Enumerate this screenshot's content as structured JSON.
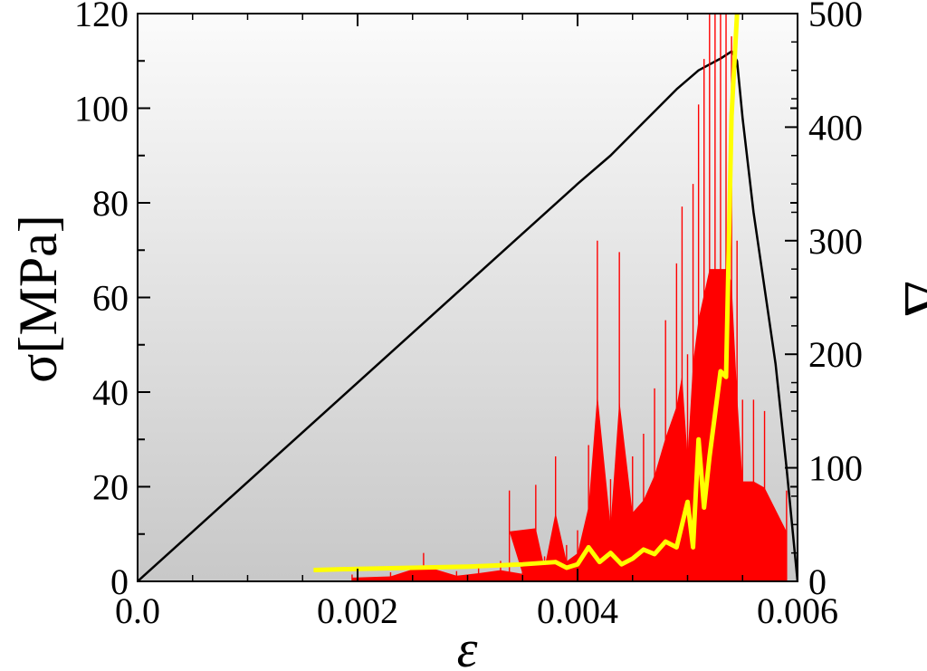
{
  "chart_data": {
    "type": "line",
    "title": "",
    "xlabel": "ε",
    "ylabel": "σ[MPa]",
    "y2label": "Δ",
    "xlim": [
      0,
      0.006
    ],
    "ylim": [
      0,
      120
    ],
    "y2lim": [
      0,
      500
    ],
    "grid": false,
    "legend": "none",
    "x_ticks": [
      "0.0",
      "0.002",
      "0.004",
      "0.006"
    ],
    "y_ticks": [
      "0",
      "20",
      "40",
      "60",
      "80",
      "100",
      "120"
    ],
    "y2_ticks": [
      "0",
      "100",
      "200",
      "300",
      "400",
      "500"
    ],
    "series": [
      {
        "axis": "left",
        "color": "#000000",
        "style": "line",
        "points": [
          [
            0,
            0
          ],
          [
            0.0005,
            10.5
          ],
          [
            0.001,
            21
          ],
          [
            0.0015,
            31.5
          ],
          [
            0.002,
            42
          ],
          [
            0.0025,
            52.5
          ],
          [
            0.003,
            63
          ],
          [
            0.0035,
            73.5
          ],
          [
            0.004,
            84
          ],
          [
            0.0043,
            90
          ],
          [
            0.0046,
            97
          ],
          [
            0.0049,
            104
          ],
          [
            0.0051,
            108
          ],
          [
            0.0053,
            110.5
          ],
          [
            0.0054,
            112
          ],
          [
            0.00545,
            110
          ],
          [
            0.0055,
            98
          ],
          [
            0.0056,
            78
          ],
          [
            0.0057,
            62
          ],
          [
            0.0058,
            46
          ],
          [
            0.0059,
            24
          ],
          [
            0.006,
            0
          ]
        ]
      },
      {
        "axis": "right",
        "color": "#ff0000",
        "style": "spikes",
        "points": [
          [
            0.00195,
            6
          ],
          [
            0.0023,
            8
          ],
          [
            0.0026,
            25
          ],
          [
            0.0029,
            9
          ],
          [
            0.0031,
            13
          ],
          [
            0.0033,
            18
          ],
          [
            0.0035,
            12
          ],
          [
            0.00338,
            80
          ],
          [
            0.00362,
            85
          ],
          [
            0.0037,
            22
          ],
          [
            0.0038,
            110
          ],
          [
            0.0039,
            32
          ],
          [
            0.004,
            45
          ],
          [
            0.0041,
            120
          ],
          [
            0.00418,
            300
          ],
          [
            0.0043,
            90
          ],
          [
            0.00438,
            290
          ],
          [
            0.0045,
            110
          ],
          [
            0.0046,
            130
          ],
          [
            0.0047,
            170
          ],
          [
            0.0048,
            230
          ],
          [
            0.0049,
            280
          ],
          [
            0.00495,
            330
          ],
          [
            0.005,
            200
          ],
          [
            0.00505,
            350
          ],
          [
            0.0051,
            420
          ],
          [
            0.00515,
            460
          ],
          [
            0.0052,
            500
          ],
          [
            0.00525,
            500
          ],
          [
            0.0053,
            500
          ],
          [
            0.00535,
            500
          ],
          [
            0.0054,
            480
          ],
          [
            0.00545,
            300
          ],
          [
            0.0055,
            160
          ],
          [
            0.0056,
            160
          ],
          [
            0.0057,
            150
          ],
          [
            0.0059,
            80
          ]
        ]
      },
      {
        "axis": "right",
        "color": "#ffff00",
        "style": "line",
        "points": [
          [
            0.0016,
            10
          ],
          [
            0.002,
            11
          ],
          [
            0.0025,
            12
          ],
          [
            0.003,
            13
          ],
          [
            0.0035,
            15
          ],
          [
            0.0038,
            17
          ],
          [
            0.0039,
            12
          ],
          [
            0.004,
            15
          ],
          [
            0.0041,
            30
          ],
          [
            0.0042,
            17
          ],
          [
            0.0043,
            25
          ],
          [
            0.0044,
            15
          ],
          [
            0.0045,
            20
          ],
          [
            0.0046,
            28
          ],
          [
            0.0047,
            24
          ],
          [
            0.0048,
            35
          ],
          [
            0.0049,
            30
          ],
          [
            0.005,
            70
          ],
          [
            0.00505,
            30
          ],
          [
            0.0051,
            125
          ],
          [
            0.00515,
            65
          ],
          [
            0.0052,
            110
          ],
          [
            0.0053,
            185
          ],
          [
            0.00535,
            180
          ],
          [
            0.0054,
            410
          ],
          [
            0.00545,
            500
          ]
        ]
      }
    ]
  }
}
